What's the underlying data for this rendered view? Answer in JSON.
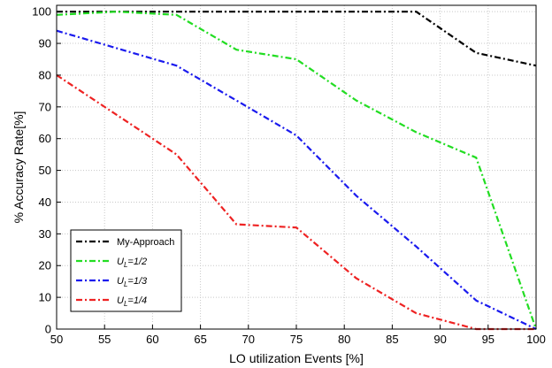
{
  "chart_data": {
    "type": "line",
    "xlabel": "LO utilization Events [%]",
    "ylabel": "% Accuracy Rate[%]",
    "xlim": [
      50,
      100
    ],
    "ylim": [
      0,
      102
    ],
    "xticks": [
      50,
      55,
      60,
      65,
      70,
      75,
      80,
      85,
      90,
      95,
      100
    ],
    "yticks": [
      0,
      10,
      20,
      30,
      40,
      50,
      60,
      70,
      80,
      90,
      100
    ],
    "grid": true,
    "legend_position": "bottom-left",
    "series": [
      {
        "name": "My-Approach",
        "name_parts": {
          "main": "My-Approach",
          "sub": "",
          "suffix": ""
        },
        "color": "#000000",
        "x": [
          50,
          62.5,
          68.75,
          75,
          81.25,
          87.5,
          93.75,
          100
        ],
        "y": [
          100,
          100,
          100,
          100,
          100,
          100,
          87,
          83
        ]
      },
      {
        "name": "U_L=1/2",
        "name_parts": {
          "main": "U",
          "sub": "L",
          "suffix": "=1/2"
        },
        "color": "#22dd22",
        "x": [
          50,
          56.25,
          62.5,
          68.75,
          75,
          81.25,
          87.5,
          93.75,
          100
        ],
        "y": [
          99,
          100,
          99,
          88,
          85,
          72,
          62,
          54,
          0
        ]
      },
      {
        "name": "U_L=1/3",
        "name_parts": {
          "main": "U",
          "sub": "L",
          "suffix": "=1/3"
        },
        "color": "#1a1aee",
        "x": [
          50,
          62.5,
          68.75,
          75,
          81.25,
          87.5,
          93.75,
          100
        ],
        "y": [
          94,
          83,
          72,
          61,
          42,
          26,
          9,
          0
        ]
      },
      {
        "name": "U_L=1/4",
        "name_parts": {
          "main": "U",
          "sub": "L",
          "suffix": "=1/4"
        },
        "color": "#ee2222",
        "x": [
          50,
          62.5,
          68.75,
          75,
          81.25,
          87.5,
          93.75,
          100
        ],
        "y": [
          80,
          55,
          33,
          32,
          16,
          5,
          0,
          0
        ]
      }
    ]
  }
}
